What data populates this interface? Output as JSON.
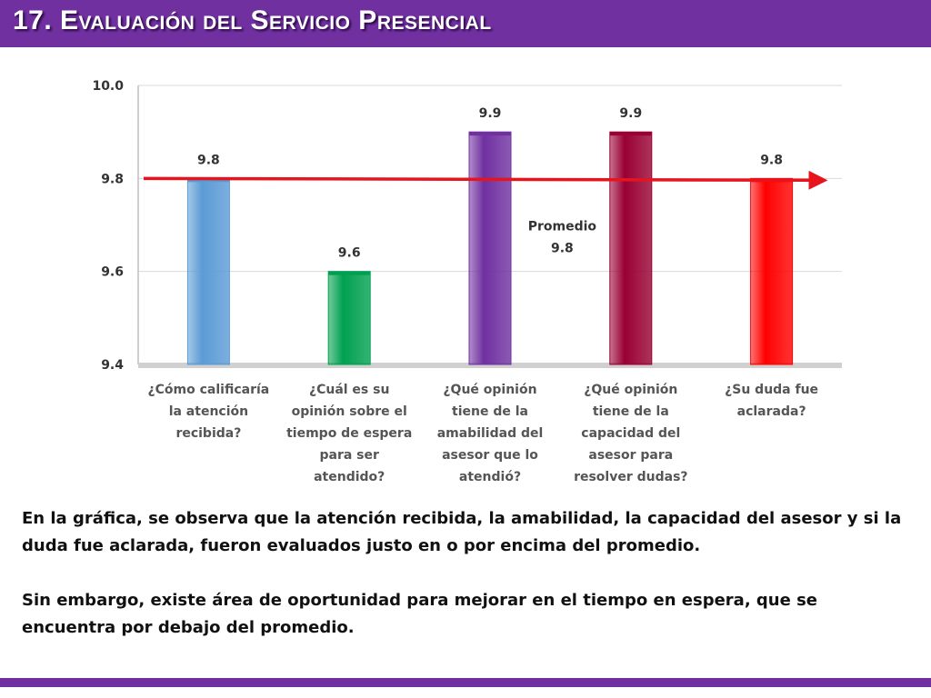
{
  "header": {
    "title": "17. Evaluación del Servicio Presencial"
  },
  "chart_data": {
    "type": "bar",
    "categories": [
      [
        "¿Cómo calificaría",
        "la atención",
        "recibida?"
      ],
      [
        "¿Cuál es su",
        "opinión sobre el",
        "tiempo de espera",
        "para ser",
        "atendido?"
      ],
      [
        "¿Qué opinión",
        "tiene de la",
        "amabilidad del",
        "asesor que lo",
        "atendió?"
      ],
      [
        "¿Qué opinión",
        "tiene de la",
        "capacidad del",
        "asesor para",
        "resolver dudas?"
      ],
      [
        "¿Su duda fue",
        "aclarada?"
      ]
    ],
    "values": [
      9.8,
      9.6,
      9.9,
      9.9,
      9.8
    ],
    "bar_colors": [
      "#5b9bd5",
      "#00a050",
      "#7030a0",
      "#990033",
      "#ff0000"
    ],
    "ylim": [
      9.4,
      10.0
    ],
    "yticks": [
      "9.4",
      "9.6",
      "9.8",
      "10.0"
    ],
    "grid": true,
    "average": {
      "value": 9.8,
      "label": "Promedio",
      "value_label": "9.8",
      "line_color": "#e8141c"
    }
  },
  "summary": {
    "paragraph1": "En la gráfica, se observa que la atención recibida, la amabilidad, la capacidad del asesor y si la duda fue aclarada, fueron evaluados justo en o por encima del promedio.",
    "paragraph2": "Sin embargo, existe área de oportunidad para mejorar en el tiempo en espera, que se encuentra por debajo del promedio."
  },
  "colors": {
    "brand": "#7030a0"
  }
}
